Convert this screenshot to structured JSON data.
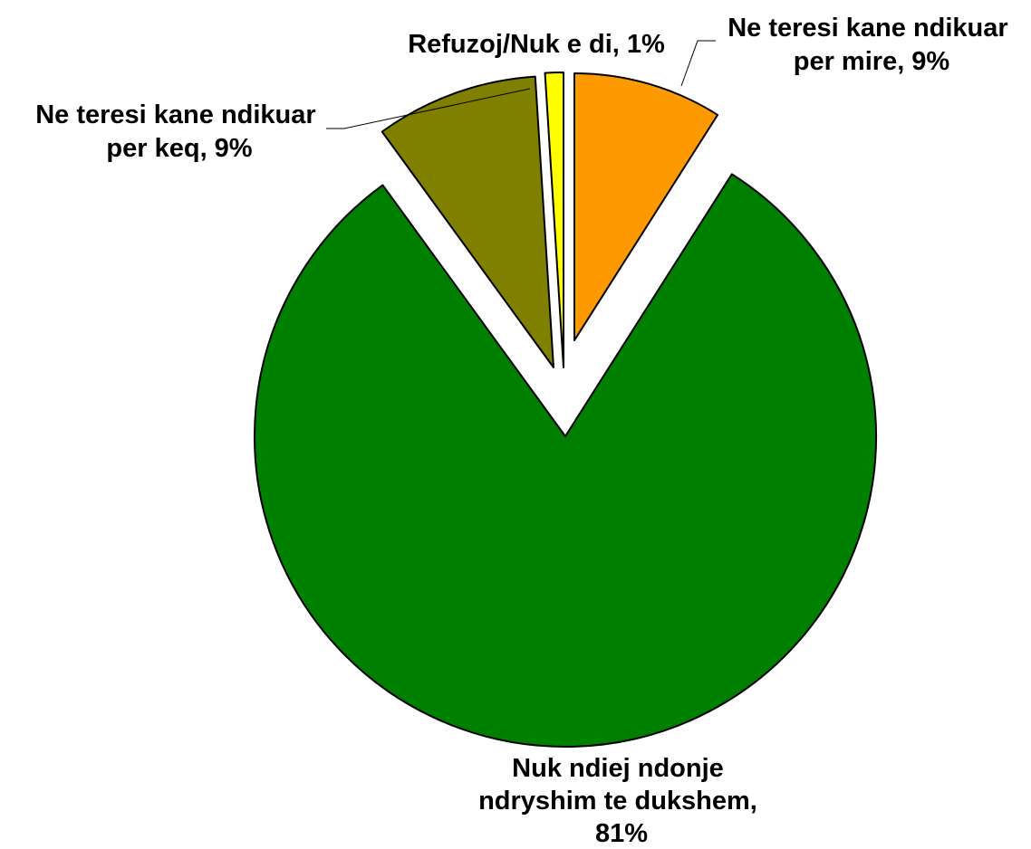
{
  "chart_data": {
    "type": "pie",
    "slices": [
      {
        "name": "Ne teresi kane ndikuar per mire",
        "value": 9,
        "color": "#FF9900",
        "label_lines": [
          "Ne teresi kane ndikuar",
          "per mire, 9%"
        ]
      },
      {
        "name": "Nuk ndiej ndonje ndryshim te dukshem",
        "value": 81,
        "color": "#008000",
        "label_lines": [
          "Nuk ndiej ndonje",
          "ndryshim te dukshem,",
          "81%"
        ]
      },
      {
        "name": "Ne teresi kane ndikuar per keq",
        "value": 9,
        "color": "#808000",
        "label_lines": [
          "Ne teresi kane ndikuar",
          "per keq, 9%"
        ]
      },
      {
        "name": "Refuzoj/Nuk e di",
        "value": 1,
        "color": "#FFFF00",
        "label_lines": [
          "Refuzoj/Nuk e di, 1%"
        ]
      }
    ],
    "exploded": true,
    "legend": "none"
  }
}
